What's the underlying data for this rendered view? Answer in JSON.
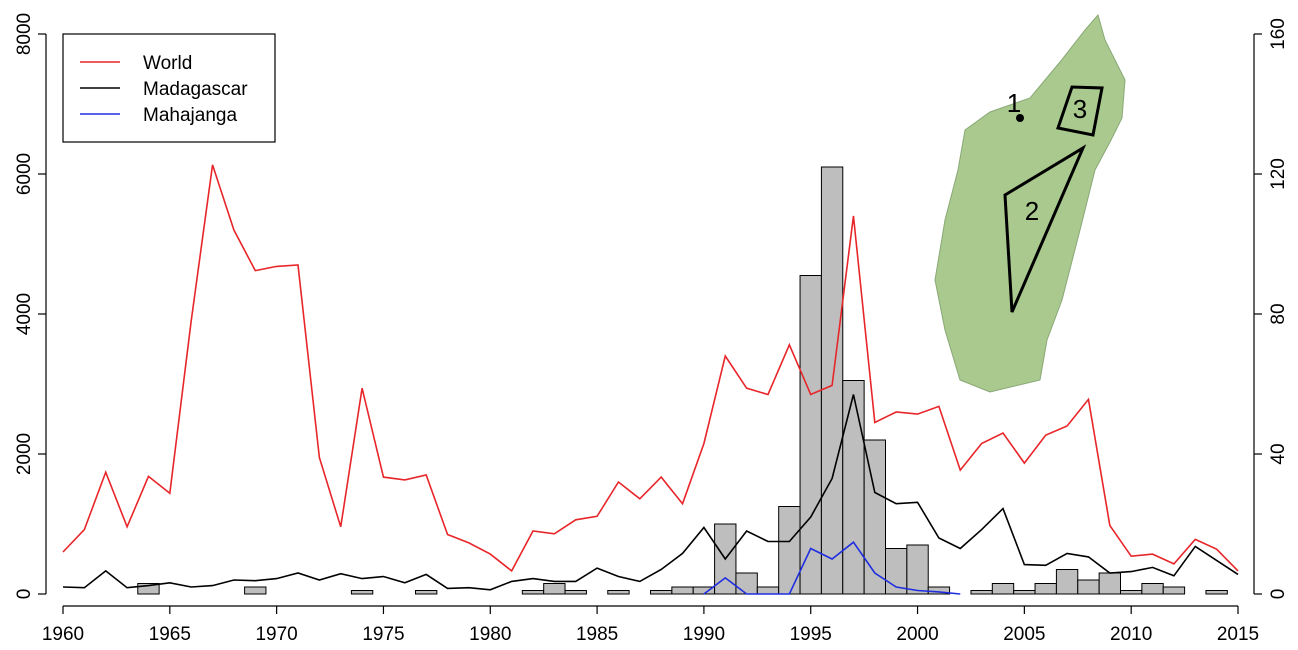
{
  "chart_data": {
    "type": "combo",
    "xlim": [
      1960,
      2015
    ],
    "xticks": [
      1960,
      1965,
      1970,
      1975,
      1980,
      1985,
      1990,
      1995,
      2000,
      2005,
      2010,
      2015
    ],
    "ylim": [
      0,
      8000
    ],
    "yticks": [
      0,
      2000,
      4000,
      6000,
      8000
    ],
    "y2lim": [
      0,
      160
    ],
    "y2ticks": [
      0,
      40,
      80,
      120,
      160
    ],
    "legend": "top-left",
    "annotations": [
      "1",
      "2",
      "3"
    ],
    "bars": {
      "axis": "y2",
      "color": "#bebebe",
      "x": [
        1964,
        1969,
        1974,
        1977,
        1982,
        1983,
        1984,
        1986,
        1988,
        1989,
        1990,
        1991,
        1992,
        1993,
        1994,
        1995,
        1996,
        1997,
        1998,
        1999,
        2000,
        2001,
        2003,
        2004,
        2005,
        2006,
        2007,
        2008,
        2009,
        2010,
        2011,
        2012,
        2014
      ],
      "values": [
        3,
        2,
        1,
        1,
        1,
        3,
        1,
        1,
        1,
        2,
        2,
        20,
        6,
        2,
        25,
        91,
        122,
        61,
        44,
        13,
        14,
        2,
        1,
        3,
        1,
        3,
        7,
        4,
        6,
        1,
        3,
        2,
        1
      ]
    },
    "series": [
      {
        "name": "World",
        "color": "#e8262a",
        "x": [
          1960,
          1961,
          1962,
          1963,
          1964,
          1965,
          1966,
          1967,
          1968,
          1969,
          1970,
          1971,
          1972,
          1973,
          1974,
          1975,
          1976,
          1977,
          1978,
          1979,
          1980,
          1981,
          1982,
          1983,
          1984,
          1985,
          1986,
          1987,
          1988,
          1989,
          1990,
          1991,
          1992,
          1993,
          1994,
          1995,
          1996,
          1997,
          1998,
          1999,
          2000,
          2001,
          2002,
          2003,
          2004,
          2005,
          2006,
          2007,
          2008,
          2009,
          2010,
          2011,
          2012,
          2013,
          2014,
          2015
        ],
        "values": [
          600,
          920,
          1740,
          960,
          1680,
          1440,
          3900,
          6130,
          5200,
          4620,
          4680,
          4700,
          1950,
          960,
          2940,
          1670,
          1630,
          1700,
          850,
          730,
          570,
          330,
          900,
          860,
          1060,
          1110,
          1600,
          1360,
          1670,
          1290,
          2150,
          3400,
          2940,
          2850,
          3560,
          2850,
          2980,
          5400,
          2450,
          2600,
          2570,
          2680,
          1770,
          2150,
          2300,
          1870,
          2270,
          2400,
          2780,
          980,
          540,
          570,
          430,
          780,
          640,
          330
        ]
      },
      {
        "name": "Madagascar",
        "color": "#000000",
        "x": [
          1960,
          1961,
          1962,
          1963,
          1964,
          1965,
          1966,
          1967,
          1968,
          1969,
          1970,
          1971,
          1972,
          1973,
          1974,
          1975,
          1976,
          1977,
          1978,
          1979,
          1980,
          1981,
          1982,
          1983,
          1984,
          1985,
          1986,
          1987,
          1988,
          1989,
          1990,
          1991,
          1992,
          1993,
          1994,
          1995,
          1996,
          1997,
          1998,
          1999,
          2000,
          2001,
          2002,
          2003,
          2004,
          2005,
          2006,
          2007,
          2008,
          2009,
          2010,
          2011,
          2012,
          2013,
          2014,
          2015
        ],
        "values": [
          100,
          90,
          330,
          90,
          120,
          160,
          100,
          120,
          200,
          190,
          220,
          300,
          200,
          290,
          220,
          250,
          160,
          280,
          80,
          90,
          60,
          180,
          220,
          180,
          180,
          370,
          250,
          180,
          350,
          580,
          950,
          500,
          900,
          750,
          750,
          1100,
          1650,
          2850,
          1450,
          1290,
          1310,
          800,
          650,
          920,
          1220,
          420,
          410,
          580,
          530,
          300,
          320,
          380,
          260,
          680,
          480,
          280
        ]
      },
      {
        "name": "Mahajanga",
        "color": "#1f2fe0",
        "x": [
          1990,
          1991,
          1992,
          1993,
          1994,
          1995,
          1996,
          1997,
          1998,
          1999,
          2000,
          2001,
          2002
        ],
        "values": [
          0,
          230,
          0,
          0,
          0,
          650,
          500,
          740,
          300,
          100,
          50,
          30,
          0
        ]
      }
    ]
  }
}
